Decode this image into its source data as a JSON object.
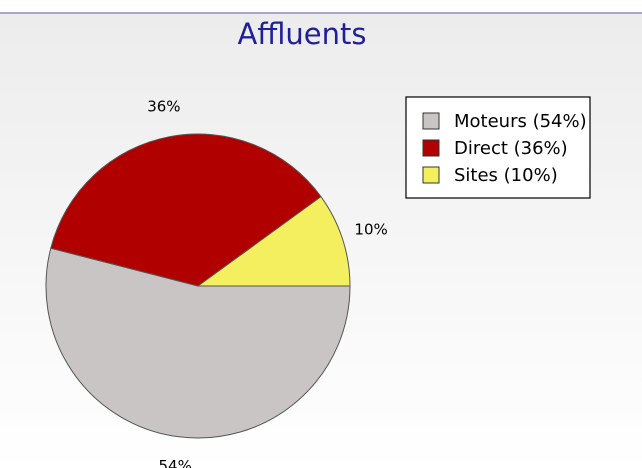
{
  "chart_data": {
    "type": "pie",
    "title": "Affluents",
    "categories": [
      "Moteurs (54%)",
      "Direct (36%)",
      "Sites (10%)"
    ],
    "values": [
      54,
      36,
      10
    ],
    "value_labels": [
      "54%",
      "36%",
      "10%"
    ],
    "colors": [
      "#c9c5c5",
      "#b00000",
      "#f4ef5e"
    ],
    "legend": "upper right"
  }
}
